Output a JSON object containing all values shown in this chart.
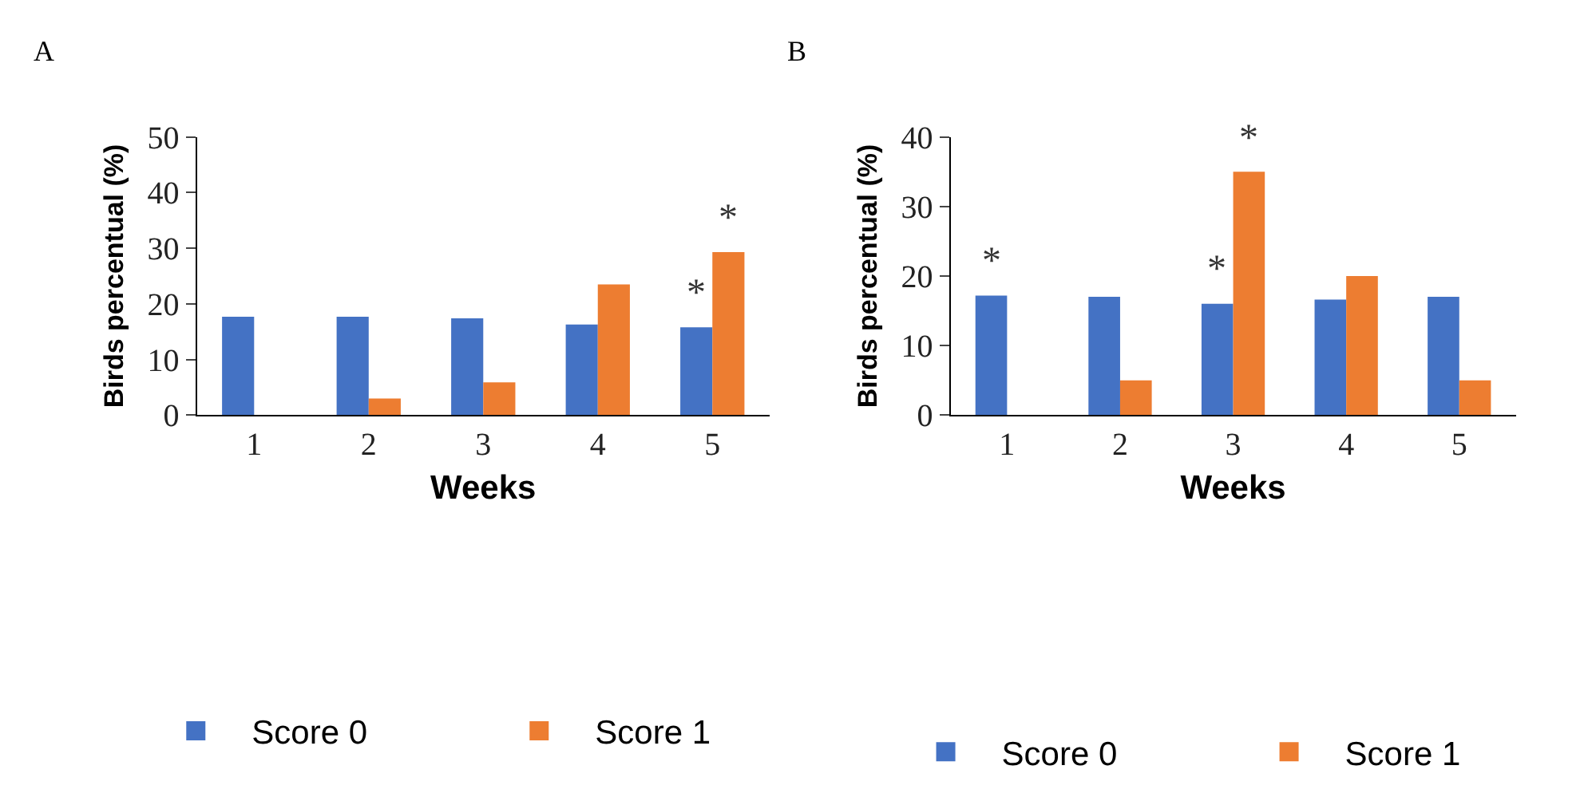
{
  "chart_data": [
    {
      "type": "bar",
      "title": "A",
      "xlabel": "Weeks",
      "ylabel": "Birds percentual (%)",
      "categories": [
        "1",
        "2",
        "3",
        "4",
        "5"
      ],
      "series": [
        {
          "name": "Score 0",
          "color": "#4472c4",
          "values": [
            17.7,
            17.7,
            17.4,
            16.3,
            15.8
          ]
        },
        {
          "name": "Score 1",
          "color": "#ed7d31",
          "values": [
            0,
            3,
            5.9,
            23.5,
            29.3
          ]
        }
      ],
      "ylim": [
        0,
        50
      ],
      "yticks": [
        0,
        10,
        20,
        30,
        40,
        50
      ],
      "legend": "bottom",
      "annotations": [
        {
          "text": "*",
          "x": "5",
          "y": 15.8
        },
        {
          "text": "*",
          "x": "5",
          "y": 29.3
        }
      ]
    },
    {
      "type": "bar",
      "title": "B",
      "xlabel": "Weeks",
      "ylabel": "Birds percentual (%)",
      "categories": [
        "1",
        "2",
        "3",
        "4",
        "5"
      ],
      "series": [
        {
          "name": "Score 0",
          "color": "#4472c4",
          "values": [
            17.2,
            17,
            16,
            16.6,
            17
          ]
        },
        {
          "name": "Score 1",
          "color": "#ed7d31",
          "values": [
            0,
            5,
            35,
            20,
            5
          ]
        }
      ],
      "ylim": [
        0,
        40
      ],
      "yticks": [
        0,
        10,
        20,
        30,
        40
      ],
      "legend": "bottom",
      "annotations": [
        {
          "text": "*",
          "x": "1",
          "y": 17.2
        },
        {
          "text": "*",
          "x": "3",
          "y": 16
        },
        {
          "text": "*",
          "x": "3",
          "y": 35
        }
      ]
    }
  ]
}
